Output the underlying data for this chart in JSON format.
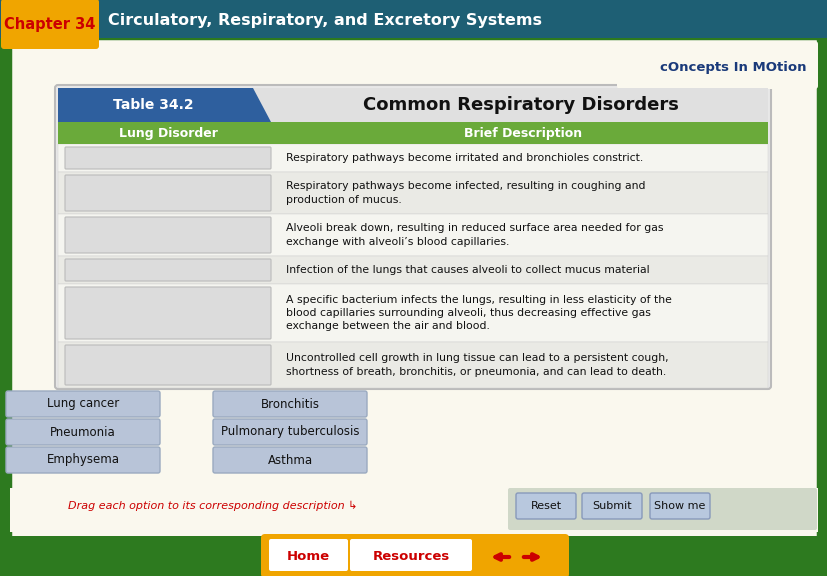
{
  "title_chapter": "Chapter 34",
  "title_main": "Circulatory, Respiratory, and Excretory Systems",
  "header_bg": "#1e5f74",
  "chapter_bg": "#f0a500",
  "chapter_text_color": "#cc0000",
  "page_bg": "#f5f0dc",
  "outer_border_color": "#2d7a1f",
  "inner_bg": "#faf8ee",
  "table_title": "Table 34.2",
  "table_heading": "Common Respiratory Disorders",
  "table_header_bg": "#2e5f9e",
  "table_area_bg": "#e8e8e8",
  "table_col1_header": "Lung Disorder",
  "table_col2_header": "Brief Description",
  "col_header_bg": "#6aaa3a",
  "col_header_fg": "#ffffff",
  "row_bg_odd": "#f5f5f0",
  "row_bg_even": "#eaeae5",
  "placeholder_color": "#dcdcdc",
  "placeholder_border": "#bbbbbb",
  "descriptions": [
    "Respiratory pathways become irritated and bronchioles constrict.",
    "Respiratory pathways become infected, resulting in coughing and\nproduction of mucus.",
    "Alveoli break down, resulting in reduced surface area needed for gas\nexchange with alveoli’s blood capillaries.",
    "Infection of the lungs that causes alveoli to collect mucus material",
    "A specific bacterium infects the lungs, resulting in less elasticity of the\nblood capillaries surrounding alveoli, thus decreasing effective gas\nexchange between the air and blood.",
    "Uncontrolled cell growth in lung tissue can lead to a persistent cough,\nshortness of breath, bronchitis, or pneumonia, and can lead to death."
  ],
  "drag_items_col1": [
    "Lung cancer",
    "Pneumonia",
    "Emphysema"
  ],
  "drag_items_col2": [
    "Bronchitis",
    "Pulmonary tuberculosis",
    "Asthma"
  ],
  "drag_item_bg": "#b8c4d8",
  "drag_item_border": "#9aaac0",
  "drag_instruction": "Drag each option to its corresponding description ↳",
  "drag_instruction_color": "#cc0000",
  "button_labels": [
    "Reset",
    "Submit",
    "Show me"
  ],
  "button_bg": "#b8c8de",
  "button_border": "#8899bb",
  "bottom_strip_bg": "#d8dcc8",
  "home_label": "Home",
  "resources_label": "Resources",
  "nav_bg": "#f0a500",
  "nav_btn_bg": "#ffffff",
  "nav_text_color": "#cc0000",
  "logo_text": "cOncepts In MOtion",
  "logo_bg": "#f5f5ff"
}
